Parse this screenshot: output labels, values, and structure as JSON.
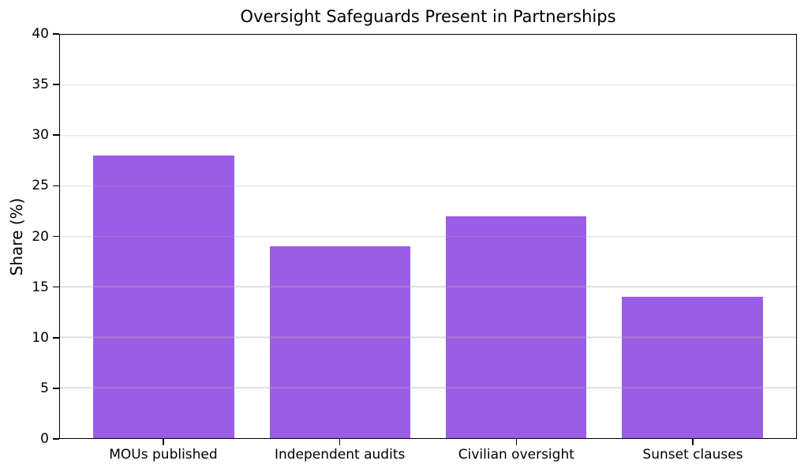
{
  "chart_data": {
    "type": "bar",
    "title": "Oversight Safeguards Present in Partnerships",
    "xlabel": "",
    "ylabel": "Share (%)",
    "categories": [
      "MOUs published",
      "Independent audits",
      "Civilian oversight",
      "Sunset clauses"
    ],
    "values": [
      28,
      19,
      22,
      14
    ],
    "ylim": [
      0,
      40
    ],
    "yticks": [
      0,
      5,
      10,
      15,
      20,
      25,
      30,
      35,
      40
    ],
    "bar_color": "#9b5de5",
    "gridline_color": "#b0b0b0",
    "grid": "horizontal, drawn above bars",
    "legend_position": "none",
    "background_color": "#ffffff",
    "spine_color": "#000000"
  }
}
